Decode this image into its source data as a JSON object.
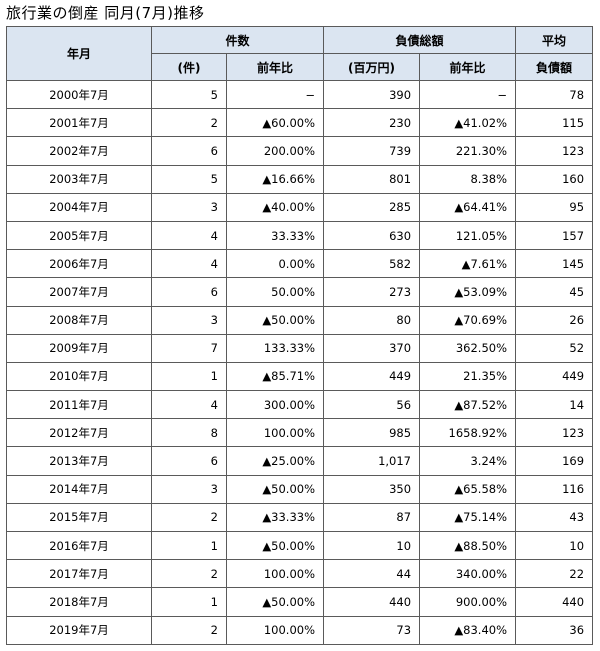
{
  "title": "旅行業の倒産 同月(7月)推移",
  "headers": {
    "year_month": "年月",
    "cases": "件数",
    "debt": "負債総額",
    "avg_top": "平均",
    "cases_unit": "(件)",
    "yoy": "前年比",
    "debt_unit": "(百万円)",
    "avg_bottom": "負債額"
  },
  "rows": [
    {
      "ym": "2000年7月",
      "cases": "5",
      "cases_yoy": "−",
      "debt": "390",
      "debt_yoy": "−",
      "avg": "78"
    },
    {
      "ym": "2001年7月",
      "cases": "2",
      "cases_yoy": "▲60.00%",
      "debt": "230",
      "debt_yoy": "▲41.02%",
      "avg": "115"
    },
    {
      "ym": "2002年7月",
      "cases": "6",
      "cases_yoy": "200.00%",
      "debt": "739",
      "debt_yoy": "221.30%",
      "avg": "123"
    },
    {
      "ym": "2003年7月",
      "cases": "5",
      "cases_yoy": "▲16.66%",
      "debt": "801",
      "debt_yoy": "8.38%",
      "avg": "160"
    },
    {
      "ym": "2004年7月",
      "cases": "3",
      "cases_yoy": "▲40.00%",
      "debt": "285",
      "debt_yoy": "▲64.41%",
      "avg": "95"
    },
    {
      "ym": "2005年7月",
      "cases": "4",
      "cases_yoy": "33.33%",
      "debt": "630",
      "debt_yoy": "121.05%",
      "avg": "157"
    },
    {
      "ym": "2006年7月",
      "cases": "4",
      "cases_yoy": "0.00%",
      "debt": "582",
      "debt_yoy": "▲7.61%",
      "avg": "145"
    },
    {
      "ym": "2007年7月",
      "cases": "6",
      "cases_yoy": "50.00%",
      "debt": "273",
      "debt_yoy": "▲53.09%",
      "avg": "45"
    },
    {
      "ym": "2008年7月",
      "cases": "3",
      "cases_yoy": "▲50.00%",
      "debt": "80",
      "debt_yoy": "▲70.69%",
      "avg": "26"
    },
    {
      "ym": "2009年7月",
      "cases": "7",
      "cases_yoy": "133.33%",
      "debt": "370",
      "debt_yoy": "362.50%",
      "avg": "52"
    },
    {
      "ym": "2010年7月",
      "cases": "1",
      "cases_yoy": "▲85.71%",
      "debt": "449",
      "debt_yoy": "21.35%",
      "avg": "449"
    },
    {
      "ym": "2011年7月",
      "cases": "4",
      "cases_yoy": "300.00%",
      "debt": "56",
      "debt_yoy": "▲87.52%",
      "avg": "14"
    },
    {
      "ym": "2012年7月",
      "cases": "8",
      "cases_yoy": "100.00%",
      "debt": "985",
      "debt_yoy": "1658.92%",
      "avg": "123"
    },
    {
      "ym": "2013年7月",
      "cases": "6",
      "cases_yoy": "▲25.00%",
      "debt": "1,017",
      "debt_yoy": "3.24%",
      "avg": "169"
    },
    {
      "ym": "2014年7月",
      "cases": "3",
      "cases_yoy": "▲50.00%",
      "debt": "350",
      "debt_yoy": "▲65.58%",
      "avg": "116"
    },
    {
      "ym": "2015年7月",
      "cases": "2",
      "cases_yoy": "▲33.33%",
      "debt": "87",
      "debt_yoy": "▲75.14%",
      "avg": "43"
    },
    {
      "ym": "2016年7月",
      "cases": "1",
      "cases_yoy": "▲50.00%",
      "debt": "10",
      "debt_yoy": "▲88.50%",
      "avg": "10"
    },
    {
      "ym": "2017年7月",
      "cases": "2",
      "cases_yoy": "100.00%",
      "debt": "44",
      "debt_yoy": "340.00%",
      "avg": "22"
    },
    {
      "ym": "2018年7月",
      "cases": "1",
      "cases_yoy": "▲50.00%",
      "debt": "440",
      "debt_yoy": "900.00%",
      "avg": "440"
    },
    {
      "ym": "2019年7月",
      "cases": "2",
      "cases_yoy": "100.00%",
      "debt": "73",
      "debt_yoy": "▲83.40%",
      "avg": "36"
    }
  ],
  "colors": {
    "header_bg": "#dbe5f1",
    "border": "#5a5a5a"
  }
}
